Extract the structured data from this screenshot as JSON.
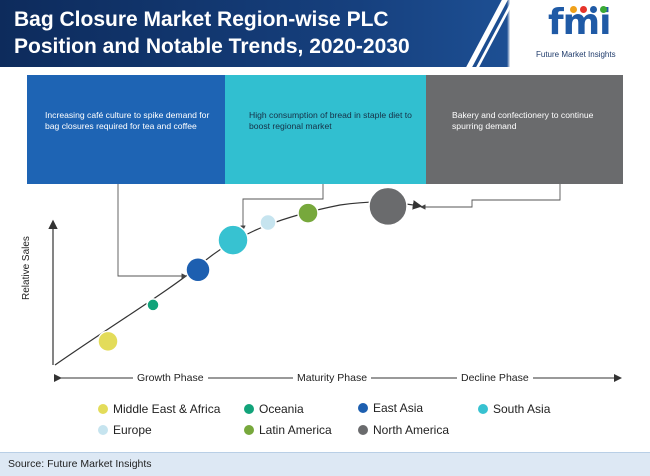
{
  "header": {
    "title_line1": "Bag Closure Market Region-wise PLC",
    "title_line2": "Position and Notable Trends, 2020-2030"
  },
  "logo": {
    "mark": "fmi",
    "tagline": "Future Market Insights"
  },
  "trend_boxes": [
    {
      "text": "Increasing café culture to spike demand for bag closures required for tea and coffee",
      "color": "#1e64b4"
    },
    {
      "text": "High consumption of bread in staple diet to boost regional market",
      "color": "#31bfd0"
    },
    {
      "text": "Bakery and confectionery to continue spurring demand",
      "color": "#6a6b6d"
    }
  ],
  "chart": {
    "y_axis_label": "Relative Sales",
    "phases": [
      "Growth Phase",
      "Maturity Phase",
      "Decline Phase"
    ]
  },
  "chart_data": {
    "type": "scatter",
    "series": [
      {
        "name": "Middle East & Africa",
        "color": "#e3dc5a",
        "x": 1.1,
        "y": 0.95,
        "size": 1.0
      },
      {
        "name": "Oceania",
        "color": "#12a37a",
        "x": 2.0,
        "y": 2.3,
        "size": 0.6
      },
      {
        "name": "East Asia",
        "color": "#1d5fb0",
        "x": 2.9,
        "y": 3.6,
        "size": 1.2
      },
      {
        "name": "South Asia",
        "color": "#37c2d1",
        "x": 3.6,
        "y": 4.7,
        "size": 1.5
      },
      {
        "name": "Europe",
        "color": "#c6e4ef",
        "x": 4.3,
        "y": 5.35,
        "size": 0.8
      },
      {
        "name": "Latin America",
        "color": "#77a83c",
        "x": 5.1,
        "y": 5.7,
        "size": 1.0
      },
      {
        "name": "North America",
        "color": "#6a6b6d",
        "x": 6.7,
        "y": 5.95,
        "size": 1.9
      }
    ]
  },
  "legend": [
    {
      "label": "Middle East & Africa",
      "color": "#e3dc5a"
    },
    {
      "label": "Oceania",
      "color": "#12a37a"
    },
    {
      "label": "East Asia",
      "color": "#1d5fb0"
    },
    {
      "label": "South Asia",
      "color": "#37c2d1"
    },
    {
      "label": "Europe",
      "color": "#c6e4ef"
    },
    {
      "label": "Latin America",
      "color": "#77a83c"
    },
    {
      "label": "North America",
      "color": "#6a6b6d"
    }
  ],
  "footer": {
    "source": "Source: Future Market Insights"
  }
}
